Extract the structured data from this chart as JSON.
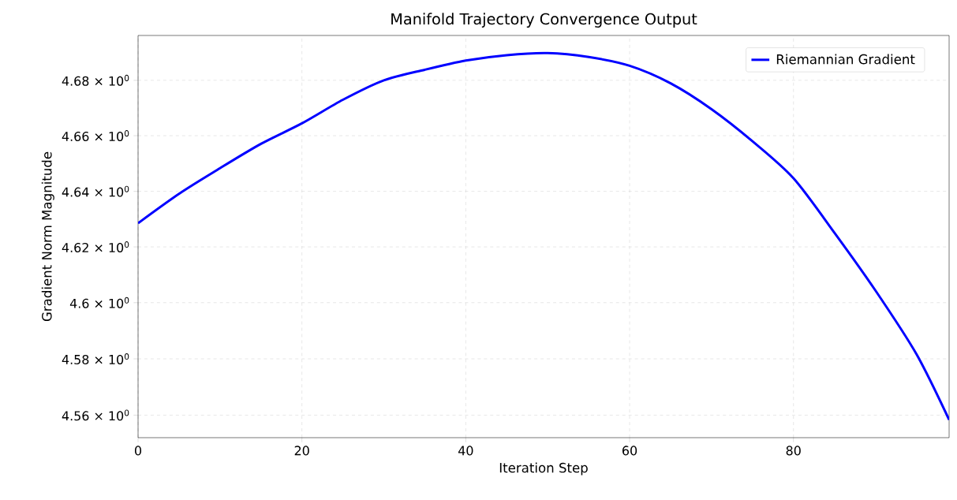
{
  "chart_data": {
    "type": "line",
    "title": "Manifold Trajectory Convergence Output",
    "xlabel": "Iteration Step",
    "ylabel": "Gradient Norm Magnitude",
    "x": [
      0,
      5,
      10,
      15,
      20,
      25,
      30,
      35,
      40,
      45,
      50,
      55,
      60,
      65,
      70,
      75,
      80,
      85,
      90,
      95,
      99
    ],
    "series": [
      {
        "name": "Riemannian Gradient",
        "color": "#0000ff",
        "values": [
          4.6285,
          4.639,
          4.6483,
          4.657,
          4.6644,
          4.673,
          4.68,
          4.684,
          4.6871,
          4.6893,
          4.6899,
          4.6885,
          4.6854,
          4.679,
          4.6695,
          4.658,
          4.6446,
          4.6251,
          4.6044,
          4.5818,
          4.5583
        ]
      }
    ],
    "xlim": [
      0,
      99
    ],
    "ylim": [
      4.5521,
      4.6964
    ],
    "xticks": [
      0,
      20,
      40,
      60,
      80
    ],
    "yticks": [
      {
        "value": 4.56,
        "label": "4.56 × 10$^{0}$"
      },
      {
        "value": 4.58,
        "label": "4.58 × 10$^{0}$"
      },
      {
        "value": 4.6,
        "label": "4.6 × 10$^{0}$"
      },
      {
        "value": 4.62,
        "label": "4.62 × 10$^{0}$"
      },
      {
        "value": 4.64,
        "label": "4.64 × 10$^{0}$"
      },
      {
        "value": 4.66,
        "label": "4.66 × 10$^{0}$"
      },
      {
        "value": 4.68,
        "label": "4.68 × 10$^{0}$"
      }
    ],
    "log": "y",
    "grid": true,
    "legend": "top right",
    "marker": "none",
    "line_style": "solid"
  }
}
